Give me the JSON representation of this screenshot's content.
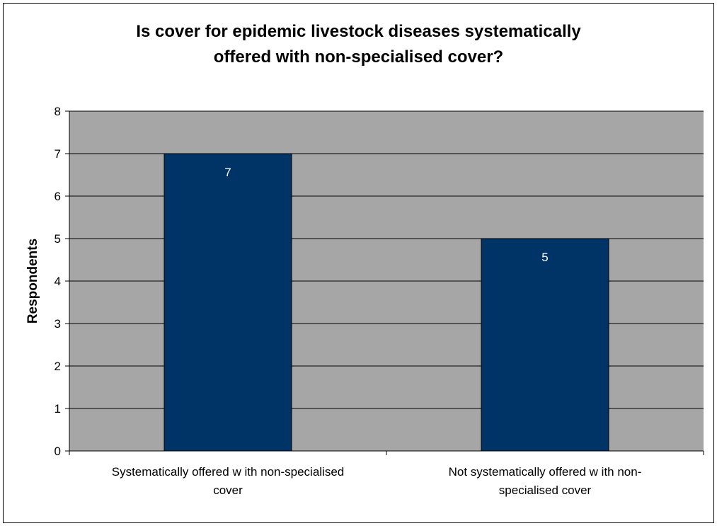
{
  "chart_data": {
    "type": "bar",
    "title_lines": [
      "Is cover for epidemic livestock diseases systematically",
      "offered with non-specialised cover?"
    ],
    "ylabel": "Respondents",
    "xlabel": "",
    "ylim": [
      0,
      8
    ],
    "yticks": [
      "0",
      "1",
      "2",
      "3",
      "4",
      "5",
      "6",
      "7",
      "8"
    ],
    "categories": [
      [
        "Systematically offered w ith non-specialised",
        "cover"
      ],
      [
        "Not systematically offered w ith non-",
        "specialised cover"
      ]
    ],
    "values": [
      7,
      5
    ],
    "data_labels": [
      "7",
      "5"
    ],
    "grid": true,
    "legend": "none",
    "colors": {
      "bar": "#003366",
      "plot_background": "#a6a6a6",
      "gridline": "#000000",
      "data_label": "#ffffff"
    }
  }
}
